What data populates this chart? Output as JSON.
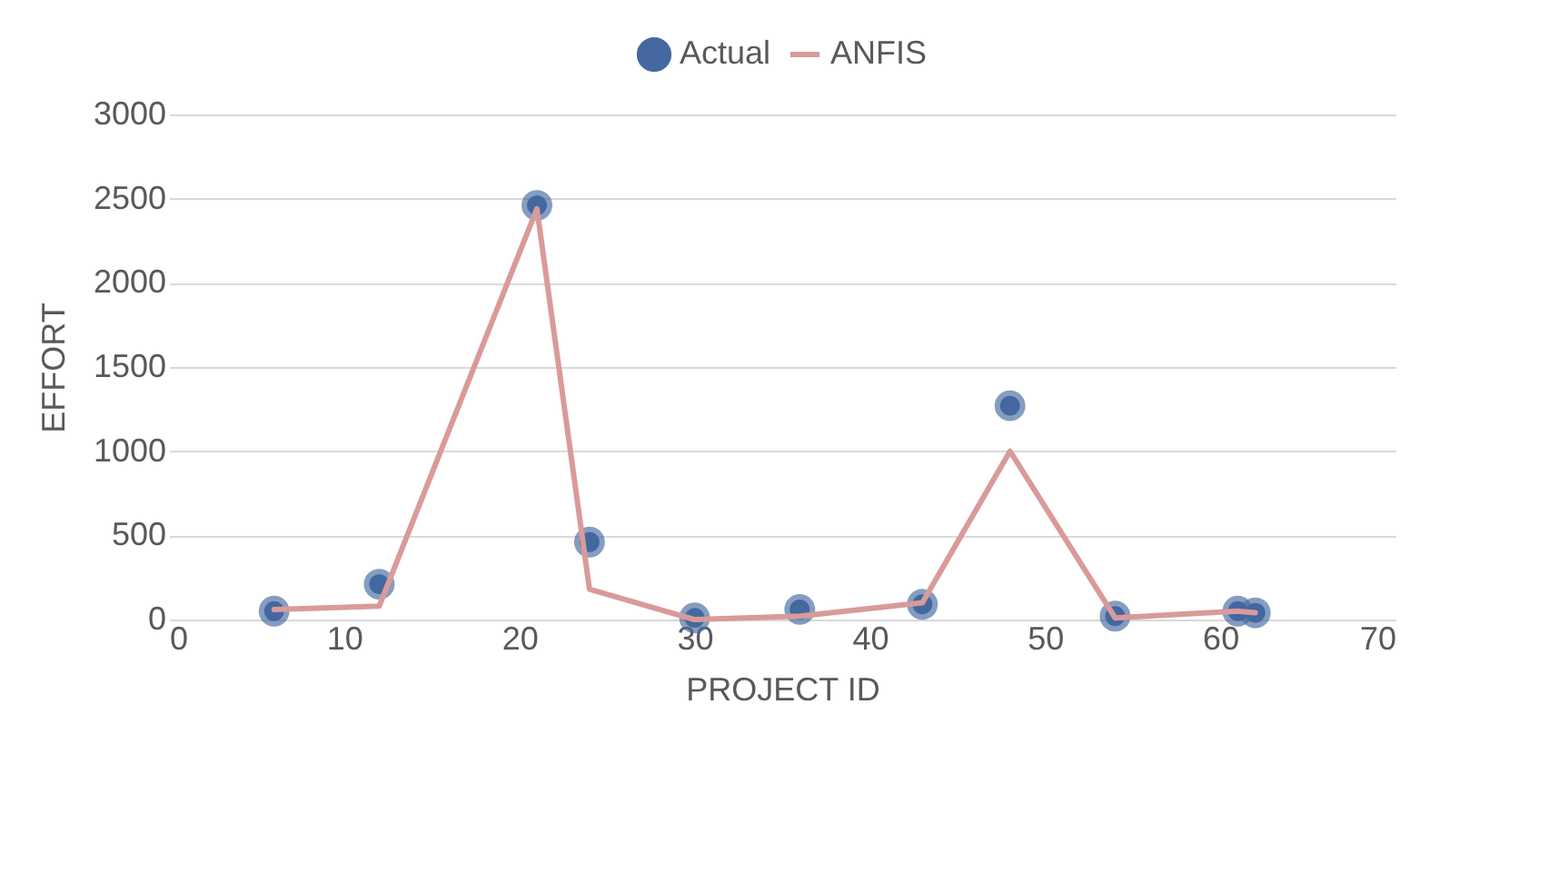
{
  "chart_data": {
    "type": "scatter",
    "xlabel": "PROJECT ID",
    "ylabel": "EFFORT",
    "xlim": [
      0,
      70
    ],
    "xticks": [
      0,
      10,
      20,
      30,
      40,
      50,
      60,
      70
    ],
    "ylim": [
      0,
      3000
    ],
    "yticks": [
      0,
      500,
      1000,
      1500,
      2000,
      2500,
      3000
    ],
    "grid": "y",
    "legend": "top",
    "x": [
      6,
      12,
      21,
      24,
      30,
      36,
      43,
      48,
      54,
      61,
      62
    ],
    "series": [
      {
        "name": "Actual",
        "marker": "circle",
        "color": "#44689f",
        "values": [
          50,
          210,
          2460,
          460,
          10,
          60,
          90,
          1270,
          20,
          50,
          40
        ]
      },
      {
        "name": "ANFIS",
        "type": "line",
        "marker": "none",
        "color": "#d99a9a",
        "values": [
          60,
          80,
          2440,
          180,
          0,
          20,
          100,
          1000,
          10,
          50,
          40
        ]
      }
    ]
  }
}
